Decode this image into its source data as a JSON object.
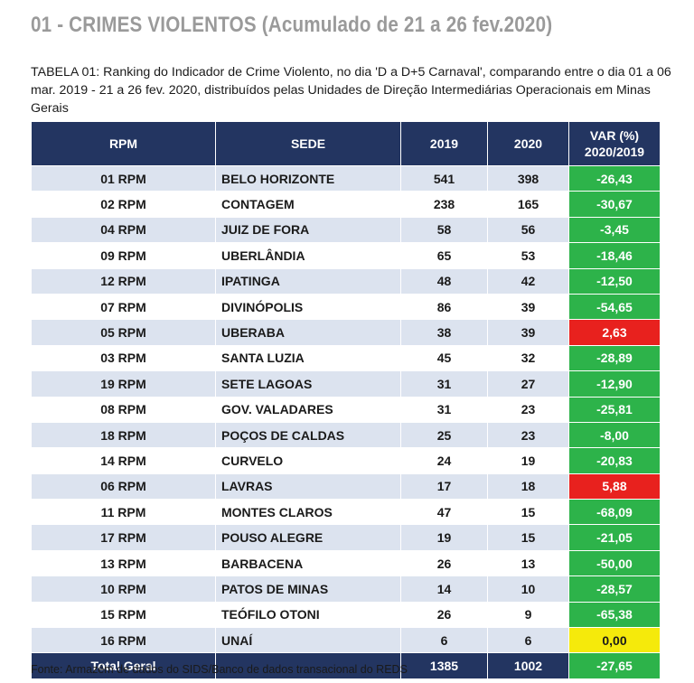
{
  "heading": "01 - CRIMES VIOLENTOS (Acumulado de 21 a 26 fev.2020)",
  "caption": "TABELA 01: Ranking do Indicador de Crime Violento, no dia 'D a D+5 Carnaval', comparando entre o dia 01 a 06 mar. 2019 - 21 a 26 fev. 2020, distribuídos pelas Unidades de Direção Intermediárias Operacionais em Minas Gerais",
  "table": {
    "headers": {
      "rpm": "RPM",
      "sede": "SEDE",
      "y2019": "2019",
      "y2020": "2020",
      "var_line1": "VAR (%)",
      "var_line2": "2020/2019"
    },
    "rows": [
      {
        "rpm": "01 RPM",
        "sede": "BELO HORIZONTE",
        "y2019": "541",
        "y2020": "398",
        "var": "-26,43"
      },
      {
        "rpm": "02 RPM",
        "sede": "CONTAGEM",
        "y2019": "238",
        "y2020": "165",
        "var": "-30,67"
      },
      {
        "rpm": "04 RPM",
        "sede": "JUIZ DE FORA",
        "y2019": "58",
        "y2020": "56",
        "var": "-3,45"
      },
      {
        "rpm": "09 RPM",
        "sede": "UBERLÂNDIA",
        "y2019": "65",
        "y2020": "53",
        "var": "-18,46"
      },
      {
        "rpm": "12 RPM",
        "sede": "IPATINGA",
        "y2019": "48",
        "y2020": "42",
        "var": "-12,50"
      },
      {
        "rpm": "07 RPM",
        "sede": "DIVINÓPOLIS",
        "y2019": "86",
        "y2020": "39",
        "var": "-54,65"
      },
      {
        "rpm": "05 RPM",
        "sede": "UBERABA",
        "y2019": "38",
        "y2020": "39",
        "var": "2,63"
      },
      {
        "rpm": "03 RPM",
        "sede": "SANTA LUZIA",
        "y2019": "45",
        "y2020": "32",
        "var": "-28,89"
      },
      {
        "rpm": "19 RPM",
        "sede": "SETE LAGOAS",
        "y2019": "31",
        "y2020": "27",
        "var": "-12,90"
      },
      {
        "rpm": "08 RPM",
        "sede": "GOV. VALADARES",
        "y2019": "31",
        "y2020": "23",
        "var": "-25,81"
      },
      {
        "rpm": "18 RPM",
        "sede": "POÇOS DE CALDAS",
        "y2019": "25",
        "y2020": "23",
        "var": "-8,00"
      },
      {
        "rpm": "14 RPM",
        "sede": "CURVELO",
        "y2019": "24",
        "y2020": "19",
        "var": "-20,83"
      },
      {
        "rpm": "06 RPM",
        "sede": "LAVRAS",
        "y2019": "17",
        "y2020": "18",
        "var": "5,88"
      },
      {
        "rpm": "11 RPM",
        "sede": "MONTES CLAROS",
        "y2019": "47",
        "y2020": "15",
        "var": "-68,09"
      },
      {
        "rpm": "17 RPM",
        "sede": "POUSO ALEGRE",
        "y2019": "19",
        "y2020": "15",
        "var": "-21,05"
      },
      {
        "rpm": "13 RPM",
        "sede": "BARBACENA",
        "y2019": "26",
        "y2020": "13",
        "var": "-50,00"
      },
      {
        "rpm": "10 RPM",
        "sede": "PATOS DE MINAS",
        "y2019": "14",
        "y2020": "10",
        "var": "-28,57"
      },
      {
        "rpm": "15 RPM",
        "sede": "TEÓFILO OTONI",
        "y2019": "26",
        "y2020": "9",
        "var": "-65,38"
      },
      {
        "rpm": "16 RPM",
        "sede": "UNAÍ",
        "y2019": "6",
        "y2020": "6",
        "var": "0,00"
      }
    ],
    "total": {
      "label": "Total Geral",
      "sede": "",
      "y2019": "1385",
      "y2020": "1002",
      "var": "-27,65"
    }
  },
  "colors": {
    "header_bg": "#233561",
    "stripe": "#dce3ef",
    "decrease": "#2db34a",
    "increase": "#e8211e",
    "no_change": "#f5ea0b"
  },
  "source": "Fonte: Armazém de dados do SIDS/Banco de dados transacional do REDS"
}
